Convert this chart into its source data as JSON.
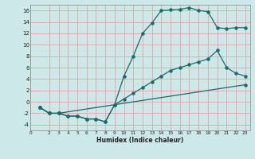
{
  "bg_color": "#cce8e8",
  "grid_color": "#e8a0a0",
  "line_color": "#1a6b6b",
  "xlabel": "Humidex (Indice chaleur)",
  "xlim": [
    0,
    23.5
  ],
  "ylim": [
    -5,
    17
  ],
  "yticks": [
    -4,
    -2,
    0,
    2,
    4,
    6,
    8,
    10,
    12,
    14,
    16
  ],
  "xticks": [
    0,
    2,
    3,
    4,
    5,
    6,
    7,
    8,
    9,
    10,
    11,
    12,
    13,
    14,
    15,
    16,
    17,
    18,
    19,
    20,
    21,
    22,
    23
  ],
  "line1_x": [
    1,
    2,
    3,
    4,
    5,
    6,
    7,
    8,
    9,
    10,
    11,
    12,
    13,
    14,
    15,
    16,
    17,
    18,
    19,
    20,
    21,
    22,
    23
  ],
  "line1_y": [
    -1,
    -2,
    -2,
    -2.5,
    -2.5,
    -3,
    -3,
    -3.5,
    -0.5,
    4.5,
    8,
    12,
    13.8,
    16,
    16.1,
    16.2,
    16.5,
    16,
    15.8,
    13,
    12.8,
    13,
    13
  ],
  "line2_x": [
    1,
    2,
    3,
    4,
    5,
    6,
    7,
    8,
    9,
    10,
    11,
    12,
    13,
    14,
    15,
    16,
    17,
    18,
    19,
    20,
    21,
    22,
    23
  ],
  "line2_y": [
    -1,
    -2,
    -2,
    -2.5,
    -2.5,
    -3,
    -3,
    -3.5,
    -0.5,
    0.5,
    1.5,
    2.5,
    3.5,
    4.5,
    5.5,
    6.0,
    6.5,
    7.0,
    7.5,
    9,
    6,
    5,
    4.5
  ],
  "line3_x": [
    1,
    2,
    3,
    23
  ],
  "line3_y": [
    -1,
    -2,
    -2,
    3
  ]
}
